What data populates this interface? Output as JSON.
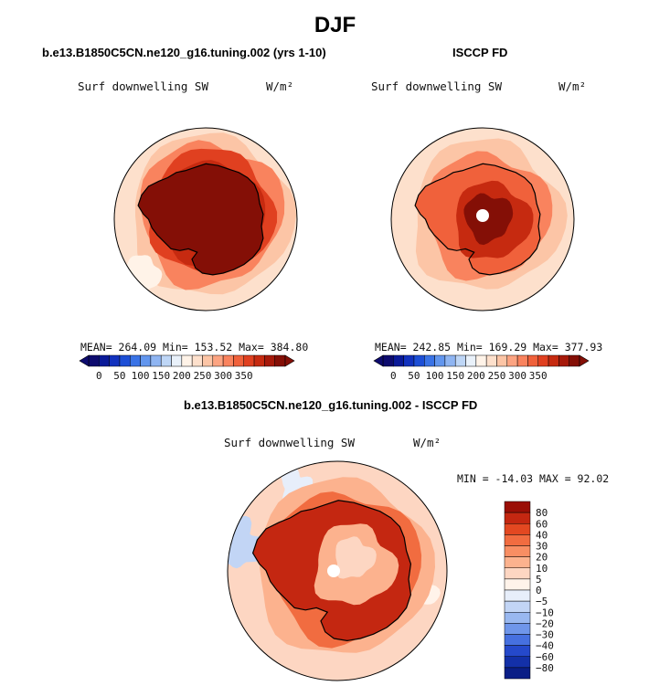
{
  "title": "DJF",
  "panels": [
    {
      "title": "b.e13.B1850C5CN.ne120_g16.tuning.002 (yrs 1-10)",
      "variable": "Surf downwelling SW",
      "units": "W/m²",
      "stats": "MEAN= 264.09  Min= 153.52  Max= 384.80"
    },
    {
      "title": "ISCCP FD",
      "variable": "Surf downwelling SW",
      "units": "W/m²",
      "stats": "MEAN= 242.85  Min= 169.29  Max= 377.93"
    },
    {
      "title": "b.e13.B1850C5CN.ne120_g16.tuning.002 - ISCCP FD",
      "variable": "Surf downwelling SW",
      "units": "W/m²",
      "stats": "MIN = -14.03 MAX =  92.02"
    }
  ],
  "chart_data": [
    {
      "type": "heatmap",
      "title": "b.e13.B1850C5CN.ne120_g16.tuning.002 (yrs 1-10)",
      "variable": "Surf downwelling SW",
      "units": "W/m²",
      "projection": "south polar stereographic",
      "season": "DJF",
      "mean": 264.09,
      "min": 153.52,
      "max": 384.8,
      "colorbar": {
        "orientation": "horizontal",
        "ticks": [
          "0",
          "50",
          "100",
          "150",
          "200",
          "250",
          "300",
          "350"
        ],
        "colors": [
          "#0d0b6e",
          "#0a1a98",
          "#1232be",
          "#1d4fd6",
          "#3a73e6",
          "#6296ee",
          "#8fb5f2",
          "#bed6f6",
          "#e9f1fa",
          "#fff3e8",
          "#fde0cc",
          "#fcc5a6",
          "#fca482",
          "#f9835e",
          "#f0613b",
          "#e04020",
          "#c62a10",
          "#a6190a",
          "#840f06"
        ]
      }
    },
    {
      "type": "heatmap",
      "title": "ISCCP FD",
      "variable": "Surf downwelling SW",
      "units": "W/m²",
      "projection": "south polar stereographic",
      "season": "DJF",
      "mean": 242.85,
      "min": 169.29,
      "max": 377.93,
      "colorbar": {
        "orientation": "horizontal",
        "ticks": [
          "0",
          "50",
          "100",
          "150",
          "200",
          "250",
          "300",
          "350"
        ]
      }
    },
    {
      "type": "heatmap",
      "title": "b.e13.B1850C5CN.ne120_g16.tuning.002 - ISCCP FD",
      "variable": "Surf downwelling SW",
      "units": "W/m²",
      "projection": "south polar stereographic",
      "season": "DJF",
      "min": -14.03,
      "max": 92.02,
      "colorbar": {
        "orientation": "vertical",
        "levels": [
          "80",
          "60",
          "40",
          "30",
          "20",
          "10",
          "5",
          "0",
          "−5",
          "−10",
          "−20",
          "−30",
          "−40",
          "−60",
          "−80"
        ],
        "colors": [
          "#9a0f06",
          "#c42711",
          "#e34821",
          "#f16c40",
          "#f88e63",
          "#fcb28e",
          "#fdd6c2",
          "#fff3ea",
          "#e7eefa",
          "#c2d5f5",
          "#99b8f0",
          "#6f96ea",
          "#4670e0",
          "#2549cb",
          "#1330a8",
          "#0a1e86"
        ]
      }
    }
  ]
}
